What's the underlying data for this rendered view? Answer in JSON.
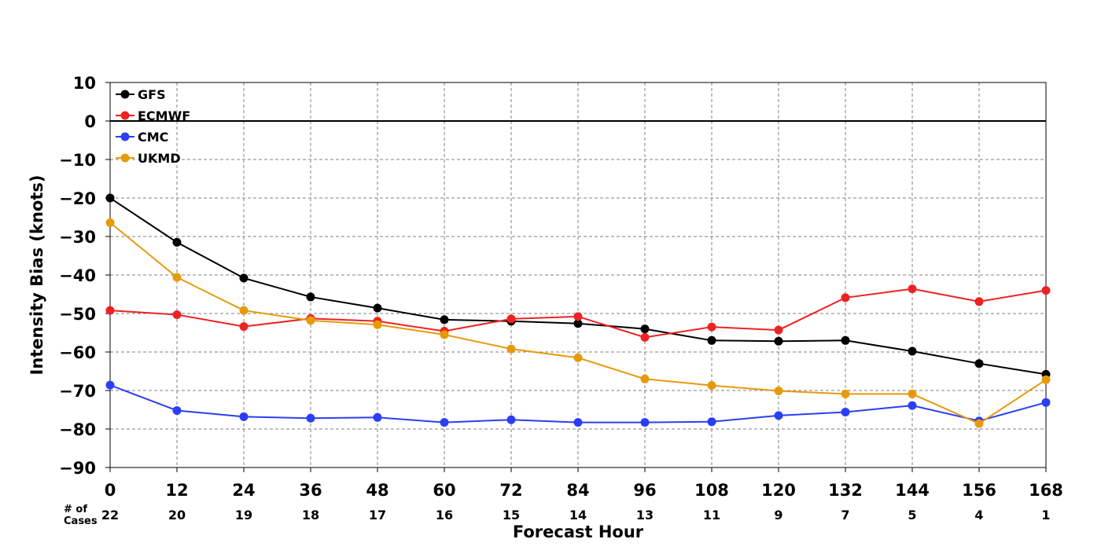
{
  "chart_data": {
    "type": "line",
    "title": "",
    "xlabel": "Forecast Hour",
    "ylabel": "Intensity Bias (knots)",
    "x": [
      0,
      12,
      24,
      36,
      48,
      60,
      72,
      84,
      96,
      108,
      120,
      132,
      144,
      156,
      168
    ],
    "xlim": [
      0,
      168
    ],
    "ylim": [
      -90,
      10
    ],
    "yticks": [
      10,
      0,
      -10,
      -20,
      -30,
      -40,
      -50,
      -60,
      -70,
      -80,
      -90
    ],
    "grid": true,
    "grid_style": "dashed",
    "zero_line": true,
    "legend_position": "top-left",
    "cases_label": "# of\nCases",
    "cases": [
      22,
      20,
      19,
      18,
      17,
      16,
      15,
      14,
      13,
      11,
      9,
      7,
      5,
      4,
      1
    ],
    "series": [
      {
        "name": "GFS",
        "color": "#000000",
        "values": [
          -20,
          -31.5,
          -40.8,
          -45.7,
          -48.6,
          -51.6,
          -52,
          -52.6,
          -54,
          -57,
          -57.2,
          -57,
          -59.8,
          -63,
          -65.8
        ]
      },
      {
        "name": "ECMWF",
        "color": "#ee2222",
        "values": [
          -49.2,
          -50.3,
          -53.4,
          -51.3,
          -52,
          -54.6,
          -51.4,
          -50.8,
          -56.2,
          -53.5,
          -54.3,
          -45.9,
          -43.6,
          -46.9,
          -44
        ]
      },
      {
        "name": "CMC",
        "color": "#2b3ef5",
        "values": [
          -68.6,
          -75.2,
          -76.8,
          -77.2,
          -77,
          -78.3,
          -77.6,
          -78.3,
          -78.3,
          -78.1,
          -76.5,
          -75.6,
          -73.9,
          -77.9,
          -73.1
        ]
      },
      {
        "name": "UKMD",
        "color": "#e69a0a",
        "values": [
          -26.4,
          -40.6,
          -49.2,
          -51.8,
          -52.9,
          -55.5,
          -59.2,
          -61.5,
          -67,
          -68.7,
          -70.1,
          -70.9,
          -70.9,
          -78.6,
          -67.2
        ]
      }
    ]
  }
}
